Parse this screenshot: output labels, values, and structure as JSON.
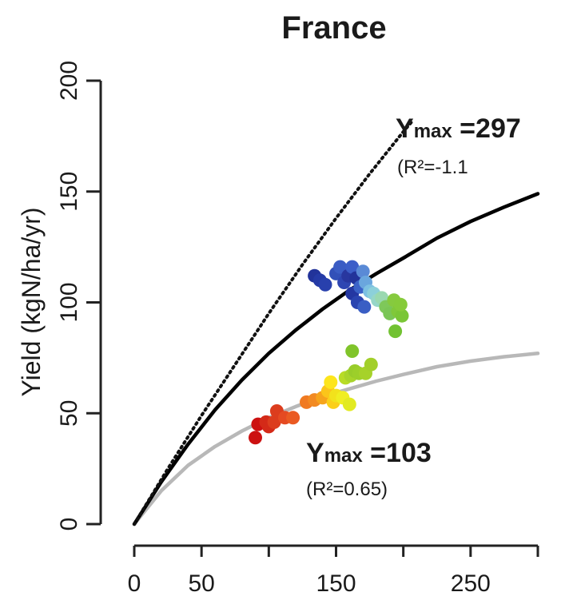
{
  "chart_data": {
    "type": "scatter",
    "title": "France",
    "xlabel": "",
    "ylabel": "Yield (kgN/ha/yr)",
    "xlim": [
      0,
      300
    ],
    "ylim": [
      0,
      200
    ],
    "xticks": [
      0,
      50,
      150,
      250
    ],
    "yticks": [
      0,
      50,
      100,
      150,
      200
    ],
    "grid": false,
    "colors": {
      "dotted_curve": "#111111",
      "upper_curve": "#000000",
      "lower_curve": "#b8b8b8"
    },
    "curves": [
      {
        "id": "dotted",
        "style": "dotted",
        "ymax_param": null,
        "points": [
          [
            0,
            0
          ],
          [
            25,
            25
          ],
          [
            50,
            49
          ],
          [
            75,
            72
          ],
          [
            100,
            95
          ],
          [
            125,
            117
          ],
          [
            150,
            138
          ],
          [
            175,
            158
          ],
          [
            200,
            177
          ],
          [
            207,
            182
          ]
        ]
      },
      {
        "id": "upper",
        "style": "solid",
        "ymax_param": 297,
        "points": [
          [
            0,
            0
          ],
          [
            20,
            19
          ],
          [
            40,
            36
          ],
          [
            60,
            51.5
          ],
          [
            80,
            65
          ],
          [
            100,
            77
          ],
          [
            120,
            87.5
          ],
          [
            140,
            97
          ],
          [
            160,
            105.5
          ],
          [
            180,
            113
          ],
          [
            200,
            120
          ],
          [
            225,
            129
          ],
          [
            250,
            136.5
          ],
          [
            275,
            143
          ],
          [
            300,
            149
          ]
        ]
      },
      {
        "id": "lower",
        "style": "solid",
        "ymax_param": 103,
        "points": [
          [
            0,
            0
          ],
          [
            20,
            15
          ],
          [
            40,
            26.5
          ],
          [
            60,
            35
          ],
          [
            80,
            42
          ],
          [
            100,
            48
          ],
          [
            120,
            53
          ],
          [
            140,
            57.5
          ],
          [
            160,
            61
          ],
          [
            180,
            64.5
          ],
          [
            200,
            67.5
          ],
          [
            225,
            71
          ],
          [
            250,
            73.5
          ],
          [
            275,
            75.5
          ],
          [
            300,
            77
          ]
        ]
      }
    ],
    "points": [
      {
        "x": 90,
        "y": 39,
        "color": "#cc1111"
      },
      {
        "x": 92,
        "y": 45,
        "color": "#cc1111"
      },
      {
        "x": 98,
        "y": 46,
        "color": "#d42a18"
      },
      {
        "x": 100,
        "y": 44,
        "color": "#d42a18"
      },
      {
        "x": 104,
        "y": 46,
        "color": "#dc3d1e"
      },
      {
        "x": 106,
        "y": 51,
        "color": "#dc3d1e"
      },
      {
        "x": 112,
        "y": 48,
        "color": "#e54a22"
      },
      {
        "x": 118,
        "y": 48,
        "color": "#ea5a22"
      },
      {
        "x": 128,
        "y": 55,
        "color": "#f07a22"
      },
      {
        "x": 134,
        "y": 56,
        "color": "#f28a22"
      },
      {
        "x": 140,
        "y": 57,
        "color": "#f6a41c"
      },
      {
        "x": 144,
        "y": 60,
        "color": "#fbc51a"
      },
      {
        "x": 146,
        "y": 64,
        "color": "#fde51c"
      },
      {
        "x": 148,
        "y": 55,
        "color": "#fbcf1a"
      },
      {
        "x": 150,
        "y": 58,
        "color": "#f2e21c"
      },
      {
        "x": 155,
        "y": 57,
        "color": "#f0ee22"
      },
      {
        "x": 160,
        "y": 54,
        "color": "#e2ea22"
      },
      {
        "x": 157,
        "y": 66,
        "color": "#b8dc26"
      },
      {
        "x": 161,
        "y": 67,
        "color": "#a8d42a"
      },
      {
        "x": 164,
        "y": 69,
        "color": "#98cc2a"
      },
      {
        "x": 167,
        "y": 68,
        "color": "#9ccf2a"
      },
      {
        "x": 172,
        "y": 68,
        "color": "#a6d22a"
      },
      {
        "x": 176,
        "y": 72,
        "color": "#a2cf2a"
      },
      {
        "x": 162,
        "y": 78,
        "color": "#80c42a"
      },
      {
        "x": 134,
        "y": 112,
        "color": "#22339a"
      },
      {
        "x": 138,
        "y": 110,
        "color": "#253aa6"
      },
      {
        "x": 142,
        "y": 108,
        "color": "#2840ad"
      },
      {
        "x": 150,
        "y": 113,
        "color": "#3250b8"
      },
      {
        "x": 153,
        "y": 116,
        "color": "#3a5cc4"
      },
      {
        "x": 156,
        "y": 109,
        "color": "#2e46b2"
      },
      {
        "x": 159,
        "y": 112,
        "color": "#28379f"
      },
      {
        "x": 162,
        "y": 116,
        "color": "#3c5ec8"
      },
      {
        "x": 162,
        "y": 104,
        "color": "#2437a2"
      },
      {
        "x": 165,
        "y": 111,
        "color": "#22339a"
      },
      {
        "x": 166,
        "y": 100,
        "color": "#2a44b0"
      },
      {
        "x": 168,
        "y": 107,
        "color": "#3b63c8"
      },
      {
        "x": 170,
        "y": 114,
        "color": "#5a8ad6"
      },
      {
        "x": 172,
        "y": 109,
        "color": "#6aa6de"
      },
      {
        "x": 171,
        "y": 98,
        "color": "#3a5ec4"
      },
      {
        "x": 175,
        "y": 105,
        "color": "#7cc0e2"
      },
      {
        "x": 178,
        "y": 104,
        "color": "#8cd0da"
      },
      {
        "x": 181,
        "y": 101,
        "color": "#96d6c8"
      },
      {
        "x": 184,
        "y": 102,
        "color": "#9ad8b0"
      },
      {
        "x": 187,
        "y": 98,
        "color": "#7ec85a"
      },
      {
        "x": 190,
        "y": 95,
        "color": "#7ac656"
      },
      {
        "x": 193,
        "y": 101,
        "color": "#86ca3e"
      },
      {
        "x": 196,
        "y": 96,
        "color": "#80c83a"
      },
      {
        "x": 199,
        "y": 94,
        "color": "#7ac636"
      },
      {
        "x": 198,
        "y": 99,
        "color": "#86cb3a"
      },
      {
        "x": 194,
        "y": 87,
        "color": "#72c232"
      }
    ],
    "annotations": [
      {
        "id": "upper",
        "label_main": "Y",
        "label_sub": "max",
        "label_value": " =297",
        "r2": "(R²=-1.1"
      },
      {
        "id": "lower",
        "label_main": "Y",
        "label_sub": "max",
        "label_value": " =103",
        "r2": "(R²=0.65)"
      }
    ]
  }
}
